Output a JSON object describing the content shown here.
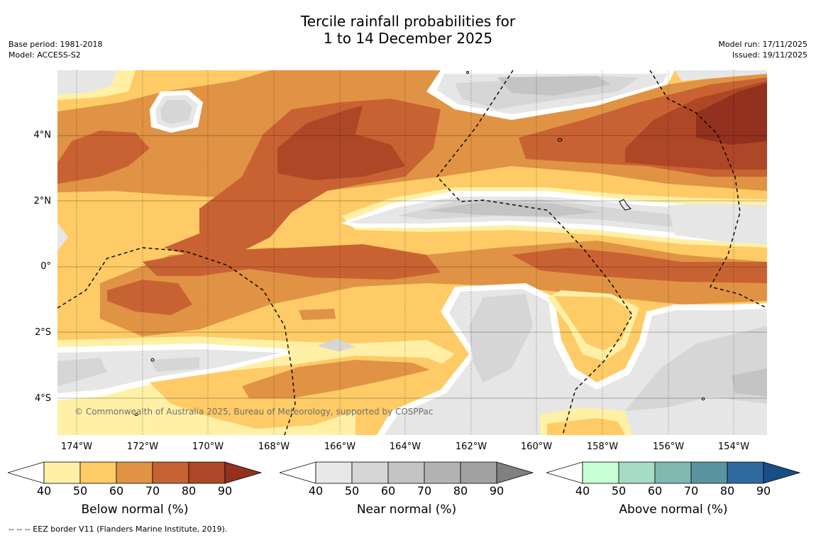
{
  "title": {
    "line1": "Tercile rainfall probabilities for",
    "line2": "1 to 14 December 2025"
  },
  "meta": {
    "base_period": "Base period: 1981-2018",
    "model": "Model: ACCESS-S2",
    "model_run": "Model run: 17/11/2025",
    "issued": "Issued: 19/11/2025"
  },
  "map": {
    "copyright": "© Commonwealth of Australia 2025, Bureau of Meteorology, supported by COSPPac",
    "lat_labels": [
      "4°N",
      "2°N",
      "0°",
      "2°S",
      "4°S"
    ],
    "lon_labels": [
      "174°W",
      "172°W",
      "170°W",
      "168°W",
      "166°W",
      "164°W",
      "162°W",
      "160°W",
      "158°W",
      "156°W",
      "154°W"
    ],
    "colors": {
      "below_40": "#fff0a5",
      "below_50": "#fecb66",
      "below_60": "#e09344",
      "below_70": "#c96232",
      "below_80": "#ae4726",
      "below_90": "#93301e",
      "near_40": "#e6e6e6",
      "near_50": "#d6d6d6",
      "near_60": "#c4c4c4"
    }
  },
  "legends": [
    {
      "title": "Below normal (%)",
      "ticks": [
        "40",
        "50",
        "60",
        "70",
        "80",
        "90"
      ],
      "colors": [
        "#ffffff",
        "#fff0a5",
        "#fecb66",
        "#e09344",
        "#c96232",
        "#ae4726",
        "#93301e"
      ]
    },
    {
      "title": "Near normal (%)",
      "ticks": [
        "40",
        "50",
        "60",
        "70",
        "80",
        "90"
      ],
      "colors": [
        "#ffffff",
        "#e8e8e8",
        "#d6d6d6",
        "#c4c4c4",
        "#b3b3b3",
        "#a1a1a1",
        "#808080"
      ]
    },
    {
      "title": "Above normal (%)",
      "ticks": [
        "40",
        "50",
        "60",
        "70",
        "80",
        "90"
      ],
      "colors": [
        "#ffffff",
        "#c8ffd2",
        "#a5dcc3",
        "#80b8b2",
        "#5a94a0",
        "#2f6a9e",
        "#184e86"
      ]
    }
  ],
  "footnote": "--  --  -- EEZ border V11 (Flanders Marine Institute, 2019)."
}
